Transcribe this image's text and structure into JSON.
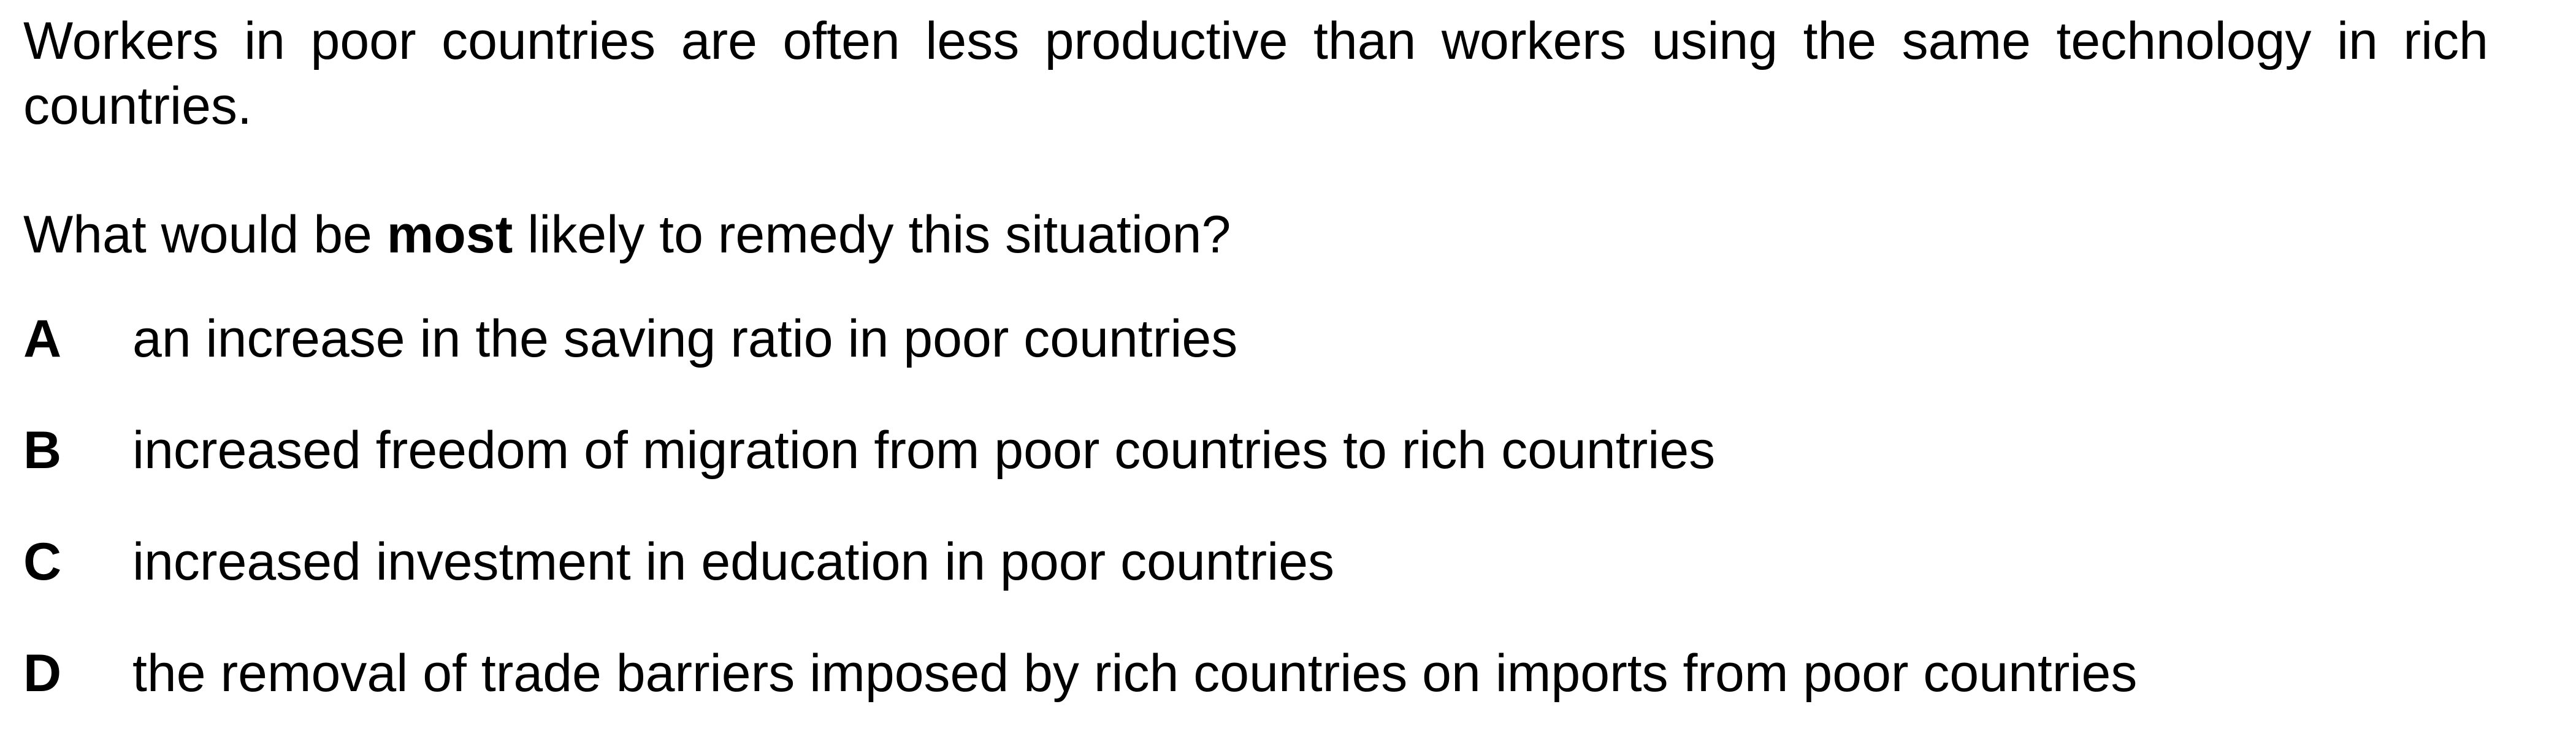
{
  "question": {
    "stem": "Workers in poor countries are often less productive than workers using the same technology in rich countries.",
    "prompt_before": "What would be ",
    "prompt_emphasis": "most",
    "prompt_after": " likely to remedy this situation?",
    "options": [
      {
        "letter": "A",
        "text": "an increase in the saving ratio in poor countries"
      },
      {
        "letter": "B",
        "text": "increased freedom of migration from poor countries to rich countries"
      },
      {
        "letter": "C",
        "text": "increased investment in education in poor countries"
      },
      {
        "letter": "D",
        "text": "the removal of trade barriers imposed by rich countries on imports from poor countries"
      }
    ]
  }
}
